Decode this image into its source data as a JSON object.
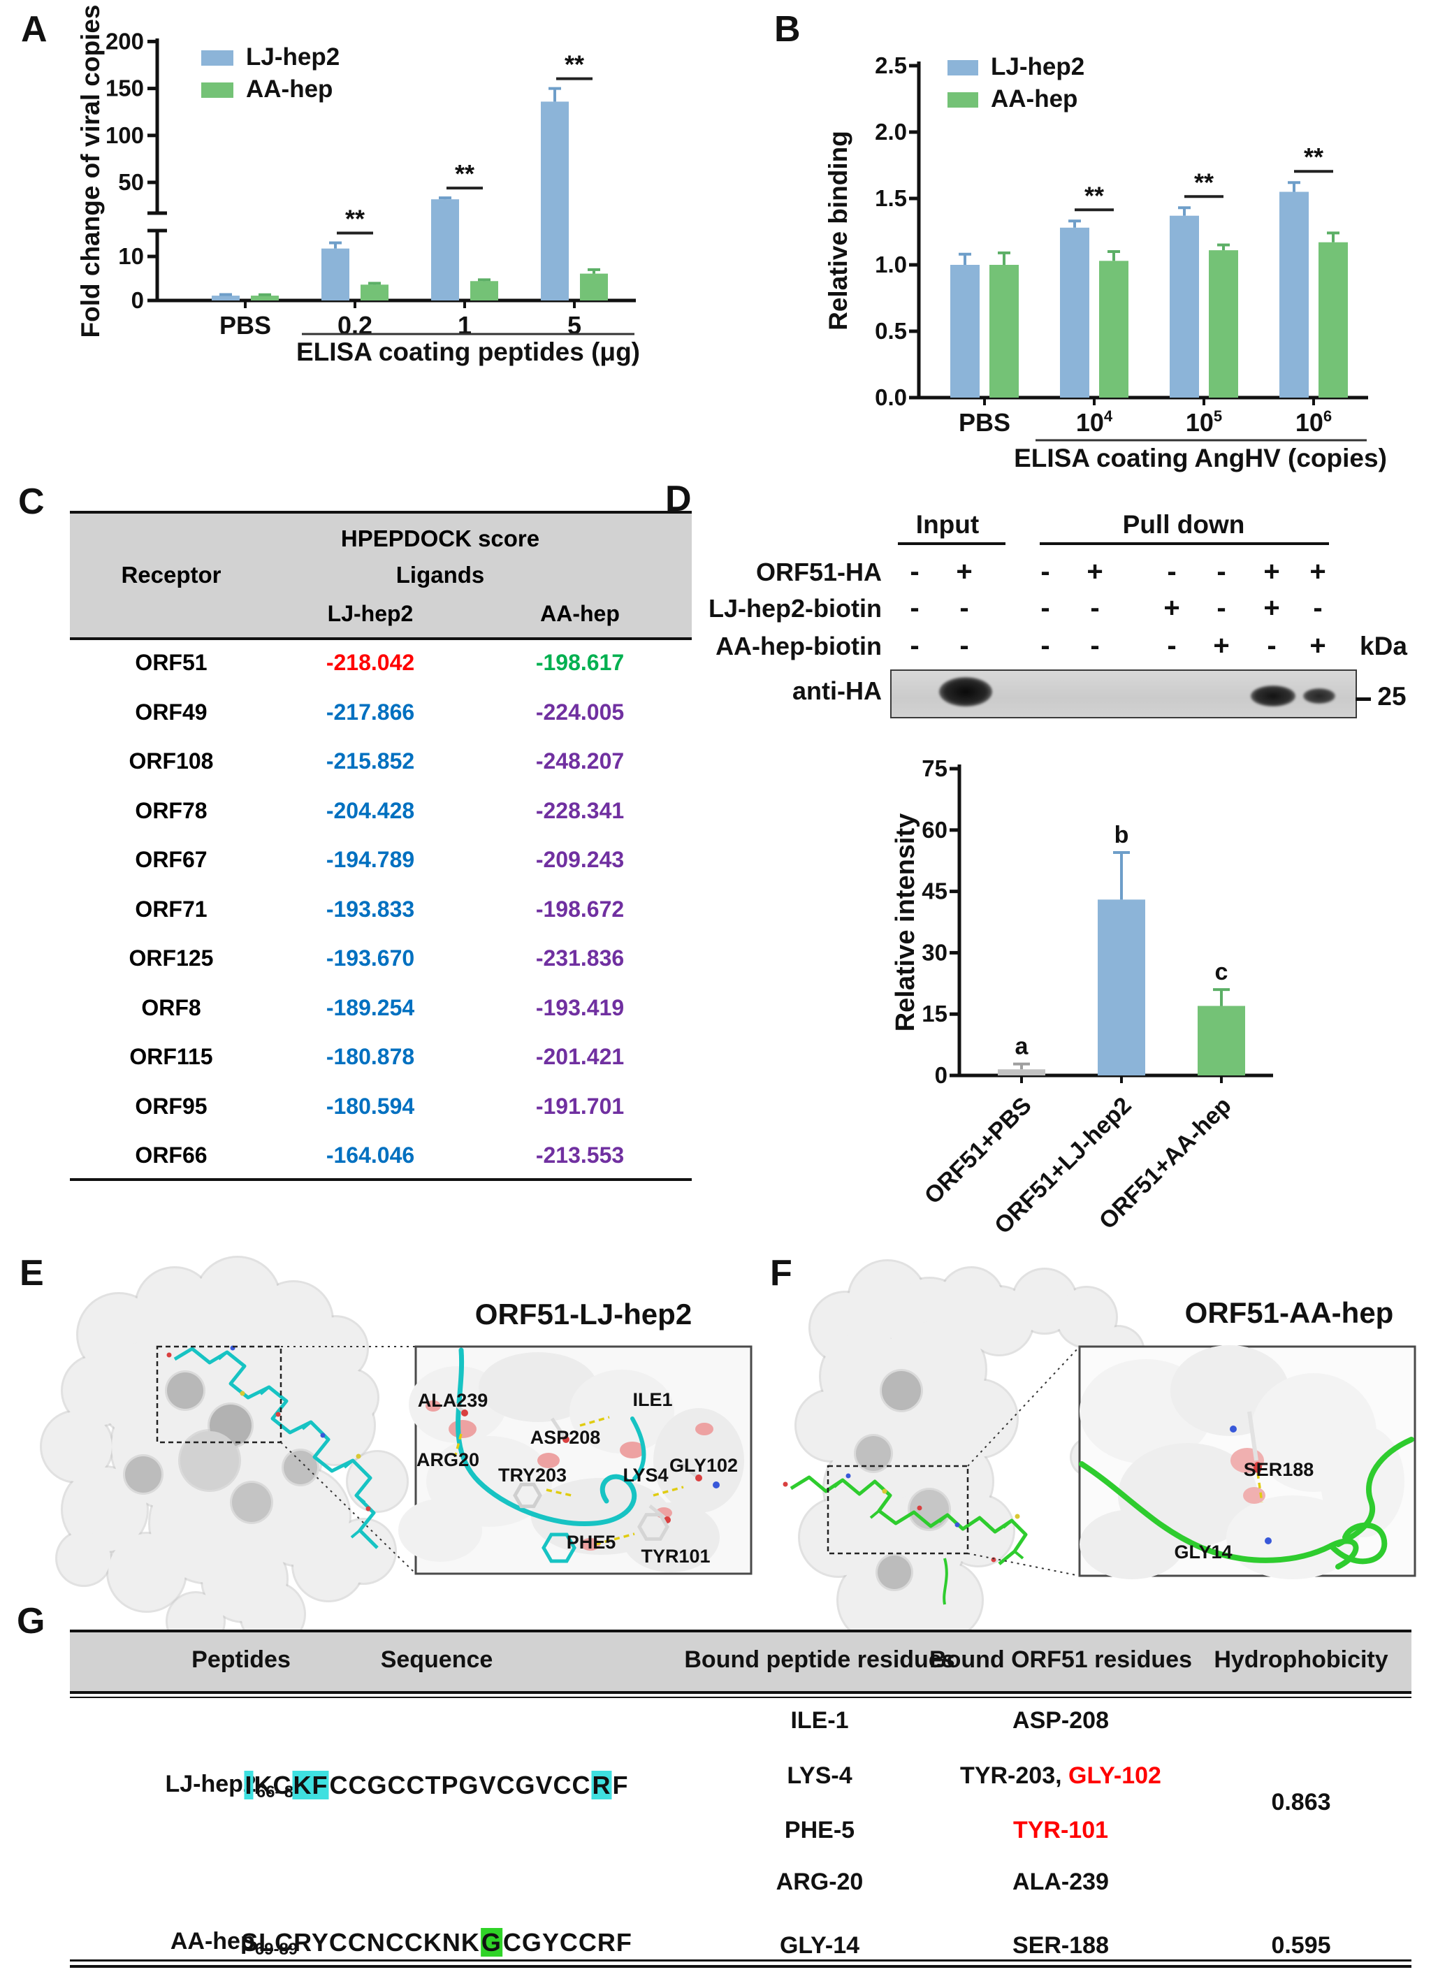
{
  "panel_labels": {
    "A": "A",
    "B": "B",
    "C": "C",
    "D": "D",
    "E": "E",
    "F": "F",
    "G": "G"
  },
  "colors": {
    "bar_blue": "#8CB4D8",
    "bar_green": "#74C276",
    "bar_gray": "#C2C2C2",
    "err_blue": "#6E9EC9",
    "err_green": "#5CAF66",
    "err_gray": "#9E9E9E",
    "score_red": "#FF0000",
    "score_green": "#00B050",
    "score_blue": "#0070C0",
    "score_purple": "#7030A0",
    "hl_cyan": "#3FE0E0",
    "hl_green": "#2FD327",
    "ribbon_cyan": "#17C3C3",
    "ribbon_green": "#2ECC2E"
  },
  "chart_data": [
    {
      "id": "A",
      "type": "bar",
      "ylabel": "Fold change of viral copies",
      "xlabel": "ELISA coating peptides (μg)",
      "categories": [
        "PBS",
        "0.2",
        "1",
        "5"
      ],
      "series": [
        {
          "name": "LJ-hep2",
          "color": "#8CB4D8",
          "values": [
            1.1,
            11.8,
            32,
            136
          ],
          "errors": [
            0.25,
            1.3,
            1.5,
            14
          ]
        },
        {
          "name": "AA-hep",
          "color": "#74C276",
          "values": [
            1.1,
            3.6,
            4.4,
            6.1
          ],
          "errors": [
            0.2,
            0.3,
            0.3,
            0.9
          ]
        }
      ],
      "broken_axis": {
        "lower_ticks": [
          "0",
          "10"
        ],
        "lower_tick_values": [
          0,
          10
        ],
        "lower_max": 14.5,
        "upper_ticks": [
          "50",
          "100",
          "150",
          "200"
        ],
        "upper_tick_values": [
          50,
          100,
          150,
          200
        ],
        "ylim_upper": 200
      },
      "significance": [
        {
          "category": "0.2",
          "label": "**"
        },
        {
          "category": "1",
          "label": "**"
        },
        {
          "category": "5",
          "label": "**"
        }
      ],
      "legend": [
        "LJ-hep2",
        "AA-hep"
      ],
      "grid": false,
      "legend_position": "top-left-inside"
    },
    {
      "id": "B",
      "type": "bar",
      "ylabel": "Relative binding",
      "xlabel": "ELISA coating AngHV (copies)",
      "categories": [
        "PBS",
        "10^4",
        "10^5",
        "10^6"
      ],
      "series": [
        {
          "name": "LJ-hep2",
          "color": "#8CB4D8",
          "values": [
            1.0,
            1.28,
            1.37,
            1.55
          ],
          "errors": [
            0.08,
            0.05,
            0.06,
            0.07
          ]
        },
        {
          "name": "AA-hep",
          "color": "#74C276",
          "values": [
            1.0,
            1.03,
            1.11,
            1.17
          ],
          "errors": [
            0.09,
            0.07,
            0.04,
            0.07
          ]
        }
      ],
      "yticks": [
        "0.0",
        "0.5",
        "1.0",
        "1.5",
        "2.0",
        "2.5"
      ],
      "ytick_values": [
        0,
        0.5,
        1.0,
        1.5,
        2.0,
        2.5
      ],
      "ylim": [
        0,
        2.5
      ],
      "significance": [
        {
          "category": "10^4",
          "label": "**"
        },
        {
          "category": "10^5",
          "label": "**"
        },
        {
          "category": "10^6",
          "label": "**"
        }
      ],
      "legend": [
        "LJ-hep2",
        "AA-hep"
      ],
      "grid": false,
      "legend_position": "top-left-inside"
    },
    {
      "id": "D",
      "type": "bar",
      "ylabel": "Relative intensity",
      "categories": [
        "ORF51+PBS",
        "ORF51+LJ-hep2",
        "ORF51+AA-hep"
      ],
      "values": [
        1.5,
        43,
        17
      ],
      "errors": [
        1.3,
        11.5,
        4
      ],
      "bar_colors": [
        "#C2C2C2",
        "#8CB4D8",
        "#74C276"
      ],
      "letters": [
        "a",
        "b",
        "c"
      ],
      "yticks": [
        "0",
        "15",
        "30",
        "45",
        "60",
        "75"
      ],
      "ytick_values": [
        0,
        15,
        30,
        45,
        60,
        75
      ],
      "ylim": [
        0,
        75
      ],
      "grid": false
    }
  ],
  "table_c": {
    "score_header": "HPEPDOCK score",
    "receptor_header": "Receptor",
    "ligands_header": "Ligands",
    "col_headers": [
      "LJ-hep2",
      "AA-hep"
    ],
    "rows": [
      {
        "receptor": "ORF51",
        "lj": "-218.042",
        "aa": "-198.617",
        "lj_color": "#FF0000",
        "aa_color": "#00B050"
      },
      {
        "receptor": "ORF49",
        "lj": "-217.866",
        "aa": "-224.005",
        "lj_color": "#0070C0",
        "aa_color": "#7030A0"
      },
      {
        "receptor": "ORF108",
        "lj": "-215.852",
        "aa": "-248.207",
        "lj_color": "#0070C0",
        "aa_color": "#7030A0"
      },
      {
        "receptor": "ORF78",
        "lj": "-204.428",
        "aa": "-228.341",
        "lj_color": "#0070C0",
        "aa_color": "#7030A0"
      },
      {
        "receptor": "ORF67",
        "lj": "-194.789",
        "aa": "-209.243",
        "lj_color": "#0070C0",
        "aa_color": "#7030A0"
      },
      {
        "receptor": "ORF71",
        "lj": "-193.833",
        "aa": "-198.672",
        "lj_color": "#0070C0",
        "aa_color": "#7030A0"
      },
      {
        "receptor": "ORF125",
        "lj": "-193.670",
        "aa": "-231.836",
        "lj_color": "#0070C0",
        "aa_color": "#7030A0"
      },
      {
        "receptor": "ORF8",
        "lj": "-189.254",
        "aa": "-193.419",
        "lj_color": "#0070C0",
        "aa_color": "#7030A0"
      },
      {
        "receptor": "ORF115",
        "lj": "-180.878",
        "aa": "-201.421",
        "lj_color": "#0070C0",
        "aa_color": "#7030A0"
      },
      {
        "receptor": "ORF95",
        "lj": "-180.594",
        "aa": "-191.701",
        "lj_color": "#0070C0",
        "aa_color": "#7030A0"
      },
      {
        "receptor": "ORF66",
        "lj": "-164.046",
        "aa": "-213.553",
        "lj_color": "#0070C0",
        "aa_color": "#7030A0"
      }
    ]
  },
  "blot": {
    "input_header": "Input",
    "pulldown_header": "Pull down",
    "rows": [
      {
        "name": "ORF51-HA",
        "signs": [
          "-",
          "+",
          "-",
          "+",
          "-",
          "-",
          "+",
          "+"
        ]
      },
      {
        "name": "LJ-hep2-biotin",
        "signs": [
          "-",
          "-",
          "-",
          "-",
          "+",
          "-",
          "+",
          "-"
        ]
      },
      {
        "name": "AA-hep-biotin",
        "signs": [
          "-",
          "-",
          "-",
          "-",
          "-",
          "+",
          "-",
          "+"
        ]
      }
    ],
    "kda_header": "kDa",
    "antibody_label": "anti-HA",
    "marker_label": "25",
    "bands": [
      {
        "lane": 1,
        "width": 76,
        "height": 42,
        "opacity": 1
      },
      {
        "lane": 6,
        "width": 64,
        "height": 30,
        "opacity": 0.95
      },
      {
        "lane": 7,
        "width": 46,
        "height": 22,
        "opacity": 0.85
      }
    ]
  },
  "panel_e": {
    "title": "ORF51-LJ-hep2",
    "residue_labels": [
      "ALA239",
      "ARG20",
      "TRY203",
      "PHE5",
      "ILE1",
      "ASP208",
      "LYS4",
      "GLY102",
      "TYR101"
    ]
  },
  "panel_f": {
    "title": "ORF51-AA-hep",
    "residue_labels": [
      "SER188",
      "GLY14"
    ]
  },
  "table_g": {
    "headers": [
      "Peptides",
      "Sequence",
      "Bound peptide residues",
      "Bound ORF51 residues",
      "Hydrophobicity"
    ],
    "rows": [
      {
        "peptide_name": "LJ-hep2",
        "peptide_range": "66–86",
        "sequence_segments": [
          {
            "text": "I",
            "highlight": "cyan"
          },
          {
            "text": "KC"
          },
          {
            "text": "KF",
            "highlight": "cyan"
          },
          {
            "text": "CCGCCTPGVCGVCC"
          },
          {
            "text": "R",
            "highlight": "cyan"
          },
          {
            "text": "F"
          }
        ],
        "bound_peptide_residues": [
          "ILE-1",
          "LYS-4",
          "PHE-5",
          "ARG-20"
        ],
        "bound_orf51_residues": [
          [
            {
              "text": "ASP-208"
            }
          ],
          [
            {
              "text": "TYR-203, "
            },
            {
              "text": "GLY-102",
              "color": "#FF0000"
            }
          ],
          [
            {
              "text": "TYR-101",
              "color": "#FF0000"
            }
          ],
          [
            {
              "text": "ALA-239"
            }
          ]
        ],
        "hydrophobicity": "0.863"
      },
      {
        "peptide_name": "AA-hep",
        "peptide_range": "69-89",
        "sequence_segments": [
          {
            "text": "SLCRYCCNCCKNK"
          },
          {
            "text": "G",
            "highlight": "green"
          },
          {
            "text": "CGYCCRF"
          }
        ],
        "bound_peptide_residues": [
          "GLY-14"
        ],
        "bound_orf51_residues": [
          [
            {
              "text": "SER-188"
            }
          ]
        ],
        "hydrophobicity": "0.595"
      }
    ]
  }
}
